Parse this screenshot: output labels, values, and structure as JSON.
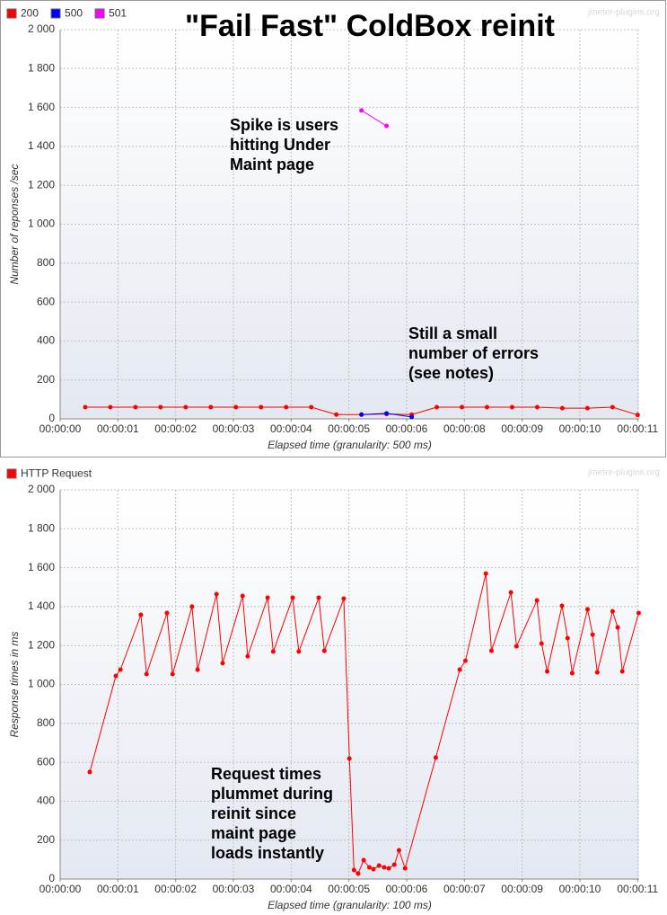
{
  "chart_data": [
    {
      "type": "line",
      "title": "\"Fail Fast\" ColdBox reinit",
      "watermark": "jmeter-plugins.org",
      "x_label": "Elapsed time (granularity: 500 ms)",
      "y_label": "Number of reponses /sec",
      "annotations": [
        [
          "Spike is users",
          "hitting Under",
          "Maint page"
        ],
        [
          "Still a small",
          "number of errors",
          "(see notes)"
        ]
      ],
      "xlim": [
        0,
        11.53
      ],
      "xticks": [
        {
          "value": 0,
          "label": "00:00:00"
        },
        {
          "value": 1.15,
          "label": "00:00:01"
        },
        {
          "value": 2.3,
          "label": "00:00:02"
        },
        {
          "value": 3.45,
          "label": "00:00:03"
        },
        {
          "value": 4.6,
          "label": "00:00:04"
        },
        {
          "value": 5.75,
          "label": "00:00:05"
        },
        {
          "value": 6.9,
          "label": "00:00:06"
        },
        {
          "value": 8.05,
          "label": "00:00:08"
        },
        {
          "value": 9.2,
          "label": "00:00:09"
        },
        {
          "value": 10.35,
          "label": "00:00:10"
        },
        {
          "value": 11.5,
          "label": "00:00:11"
        }
      ],
      "ylim": [
        0,
        2000
      ],
      "yticks": [
        0,
        200,
        400,
        600,
        800,
        {
          "value": 1000,
          "label": "1 000"
        },
        {
          "value": 1200,
          "label": "1 200"
        },
        {
          "value": 1400,
          "label": "1 400"
        },
        {
          "value": 1600,
          "label": "1 600"
        },
        {
          "value": 1800,
          "label": "1 800"
        },
        {
          "value": 2000,
          "label": "2 000"
        }
      ],
      "grid": true,
      "legend": "top-left",
      "series": [
        {
          "name": "200",
          "color": "#ff0000",
          "x": [
            0.5,
            1.0,
            1.5,
            2.0,
            2.5,
            3.0,
            3.5,
            4.0,
            4.5,
            5.0,
            5.5,
            6.0,
            6.5,
            7.0,
            7.5,
            8.0,
            8.5,
            9.0,
            9.5,
            10.0,
            10.5,
            11.0,
            11.5
          ],
          "values": [
            60,
            60,
            60,
            60,
            60,
            60,
            60,
            60,
            60,
            60,
            22,
            22,
            25,
            22,
            60,
            60,
            60,
            60,
            60,
            55,
            55,
            60,
            20
          ]
        },
        {
          "name": "500",
          "color": "#0000ff",
          "x": [
            6.0,
            6.5,
            7.0
          ],
          "values": [
            22,
            28,
            10
          ]
        },
        {
          "name": "501",
          "color": "#ff00ff",
          "x": [
            6.0,
            6.5
          ],
          "values": [
            1585,
            1505
          ]
        }
      ]
    },
    {
      "type": "line",
      "watermark": "jmeter-plugins.org",
      "x_label": "Elapsed time (granularity: 100 ms)",
      "y_label": "Response times in ms",
      "annotations": [
        [
          "Request times",
          "plummet during",
          "reinit since",
          "maint page",
          "loads instantly"
        ]
      ],
      "xlim": [
        0,
        11.33
      ],
      "xticks": [
        {
          "value": 0,
          "label": "00:00:00"
        },
        {
          "value": 1.13,
          "label": "00:00:01"
        },
        {
          "value": 2.26,
          "label": "00:00:02"
        },
        {
          "value": 3.39,
          "label": "00:00:03"
        },
        {
          "value": 4.52,
          "label": "00:00:04"
        },
        {
          "value": 5.65,
          "label": "00:00:05"
        },
        {
          "value": 6.78,
          "label": "00:00:06"
        },
        {
          "value": 7.91,
          "label": "00:00:07"
        },
        {
          "value": 9.04,
          "label": "00:00:09"
        },
        {
          "value": 10.17,
          "label": "00:00:10"
        },
        {
          "value": 11.3,
          "label": "00:00:11"
        }
      ],
      "ylim": [
        0,
        2000
      ],
      "yticks": [
        0,
        200,
        400,
        600,
        800,
        {
          "value": 1000,
          "label": "1 000"
        },
        {
          "value": 1200,
          "label": "1 200"
        },
        {
          "value": 1400,
          "label": "1 400"
        },
        {
          "value": 1600,
          "label": "1 600"
        },
        {
          "value": 1800,
          "label": "1 800"
        },
        {
          "value": 2000,
          "label": "2 000"
        }
      ],
      "grid": true,
      "legend": "top-left",
      "series": [
        {
          "name": "HTTP Request",
          "color": "#ff0000",
          "x": [
            0.58,
            1.09,
            1.18,
            1.58,
            1.69,
            2.09,
            2.2,
            2.58,
            2.69,
            3.06,
            3.18,
            3.57,
            3.67,
            4.06,
            4.17,
            4.55,
            4.67,
            5.06,
            5.17,
            5.55,
            5.66,
            5.75,
            5.83,
            5.94,
            6.05,
            6.13,
            6.24,
            6.34,
            6.43,
            6.54,
            6.63,
            6.75,
            7.35,
            7.82,
            7.93,
            8.33,
            8.44,
            8.82,
            8.93,
            9.33,
            9.42,
            9.53,
            9.82,
            9.93,
            10.02,
            10.32,
            10.42,
            10.51,
            10.81,
            10.91,
            11.0,
            11.32
          ],
          "values": [
            550,
            1044,
            1076,
            1358,
            1053,
            1367,
            1053,
            1400,
            1076,
            1464,
            1109,
            1455,
            1145,
            1446,
            1169,
            1446,
            1169,
            1446,
            1173,
            1441,
            619,
            46,
            28,
            97,
            60,
            51,
            69,
            60,
            55,
            74,
            148,
            55,
            624,
            1076,
            1122,
            1570,
            1173,
            1473,
            1196,
            1432,
            1210,
            1067,
            1404,
            1238,
            1058,
            1386,
            1256,
            1062,
            1376,
            1293,
            1067,
            1367
          ]
        }
      ]
    }
  ]
}
